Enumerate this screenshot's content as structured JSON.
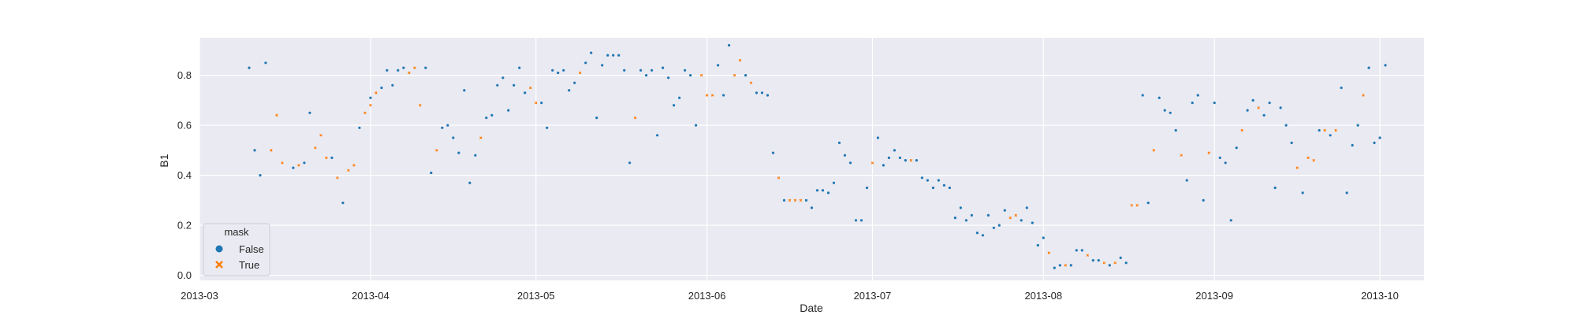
{
  "chart_data": {
    "type": "scatter",
    "xlabel": "Date",
    "ylabel": "B1",
    "x_range": [
      "2013-03-01",
      "2013-10-09"
    ],
    "ylim": [
      -0.02,
      0.95
    ],
    "x_ticks": [
      "2013-03-01",
      "2013-04-01",
      "2013-05-01",
      "2013-06-01",
      "2013-07-01",
      "2013-08-01",
      "2013-09-01",
      "2013-10-01"
    ],
    "x_tick_labels": [
      "2013-03",
      "2013-04",
      "2013-05",
      "2013-06",
      "2013-07",
      "2013-08",
      "2013-09",
      "2013-10"
    ],
    "y_ticks": [
      0.0,
      0.2,
      0.4,
      0.6,
      0.8
    ],
    "y_tick_labels": [
      "0.0",
      "0.2",
      "0.4",
      "0.6",
      "0.8"
    ],
    "grid": true,
    "legend": {
      "title": "mask",
      "placement": "lower-left",
      "entries": [
        {
          "label": "False",
          "marker": "circle",
          "color": "#1f77b4"
        },
        {
          "label": "True",
          "marker": "x",
          "color": "#ff7f0e"
        }
      ]
    },
    "colors": {
      "background": "#eaeaf2",
      "grid": "#ffffff",
      "False": "#1f77b4",
      "True": "#ff7f0e"
    },
    "series": [
      {
        "name": "False",
        "points": [
          [
            "2013-03-10",
            0.83
          ],
          [
            "2013-03-11",
            0.5
          ],
          [
            "2013-03-12",
            0.4
          ],
          [
            "2013-03-13",
            0.85
          ],
          [
            "2013-03-18",
            0.43
          ],
          [
            "2013-03-20",
            0.45
          ],
          [
            "2013-03-21",
            0.65
          ],
          [
            "2013-03-25",
            0.47
          ],
          [
            "2013-03-27",
            0.29
          ],
          [
            "2013-03-30",
            0.59
          ],
          [
            "2013-04-01",
            0.71
          ],
          [
            "2013-04-03",
            0.75
          ],
          [
            "2013-04-04",
            0.82
          ],
          [
            "2013-04-05",
            0.76
          ],
          [
            "2013-04-06",
            0.82
          ],
          [
            "2013-04-07",
            0.83
          ],
          [
            "2013-04-11",
            0.83
          ],
          [
            "2013-04-12",
            0.41
          ],
          [
            "2013-04-14",
            0.59
          ],
          [
            "2013-04-15",
            0.6
          ],
          [
            "2013-04-16",
            0.55
          ],
          [
            "2013-04-17",
            0.49
          ],
          [
            "2013-04-18",
            0.74
          ],
          [
            "2013-04-19",
            0.37
          ],
          [
            "2013-04-20",
            0.48
          ],
          [
            "2013-04-22",
            0.63
          ],
          [
            "2013-04-23",
            0.64
          ],
          [
            "2013-04-24",
            0.76
          ],
          [
            "2013-04-25",
            0.79
          ],
          [
            "2013-04-26",
            0.66
          ],
          [
            "2013-04-27",
            0.76
          ],
          [
            "2013-04-28",
            0.83
          ],
          [
            "2013-04-29",
            0.73
          ],
          [
            "2013-05-02",
            0.69
          ],
          [
            "2013-05-03",
            0.59
          ],
          [
            "2013-05-04",
            0.82
          ],
          [
            "2013-05-05",
            0.81
          ],
          [
            "2013-05-06",
            0.82
          ],
          [
            "2013-05-07",
            0.74
          ],
          [
            "2013-05-08",
            0.77
          ],
          [
            "2013-05-10",
            0.85
          ],
          [
            "2013-05-11",
            0.89
          ],
          [
            "2013-05-12",
            0.63
          ],
          [
            "2013-05-13",
            0.84
          ],
          [
            "2013-05-14",
            0.88
          ],
          [
            "2013-05-15",
            0.88
          ],
          [
            "2013-05-16",
            0.88
          ],
          [
            "2013-05-17",
            0.82
          ],
          [
            "2013-05-18",
            0.45
          ],
          [
            "2013-05-20",
            0.82
          ],
          [
            "2013-05-21",
            0.8
          ],
          [
            "2013-05-22",
            0.82
          ],
          [
            "2013-05-23",
            0.56
          ],
          [
            "2013-05-24",
            0.83
          ],
          [
            "2013-05-25",
            0.79
          ],
          [
            "2013-05-26",
            0.68
          ],
          [
            "2013-05-27",
            0.71
          ],
          [
            "2013-05-28",
            0.82
          ],
          [
            "2013-05-29",
            0.8
          ],
          [
            "2013-05-30",
            0.6
          ],
          [
            "2013-06-03",
            0.84
          ],
          [
            "2013-06-04",
            0.72
          ],
          [
            "2013-06-05",
            0.92
          ],
          [
            "2013-06-08",
            0.8
          ],
          [
            "2013-06-10",
            0.73
          ],
          [
            "2013-06-11",
            0.73
          ],
          [
            "2013-06-12",
            0.72
          ],
          [
            "2013-06-13",
            0.49
          ],
          [
            "2013-06-15",
            0.3
          ],
          [
            "2013-06-19",
            0.3
          ],
          [
            "2013-06-20",
            0.27
          ],
          [
            "2013-06-21",
            0.34
          ],
          [
            "2013-06-22",
            0.34
          ],
          [
            "2013-06-23",
            0.33
          ],
          [
            "2013-06-24",
            0.37
          ],
          [
            "2013-06-25",
            0.53
          ],
          [
            "2013-06-26",
            0.48
          ],
          [
            "2013-06-27",
            0.45
          ],
          [
            "2013-06-28",
            0.22
          ],
          [
            "2013-06-29",
            0.22
          ],
          [
            "2013-06-30",
            0.35
          ],
          [
            "2013-07-02",
            0.55
          ],
          [
            "2013-07-03",
            0.44
          ],
          [
            "2013-07-04",
            0.47
          ],
          [
            "2013-07-05",
            0.5
          ],
          [
            "2013-07-06",
            0.47
          ],
          [
            "2013-07-07",
            0.46
          ],
          [
            "2013-07-09",
            0.46
          ],
          [
            "2013-07-10",
            0.39
          ],
          [
            "2013-07-11",
            0.38
          ],
          [
            "2013-07-12",
            0.35
          ],
          [
            "2013-07-13",
            0.38
          ],
          [
            "2013-07-14",
            0.36
          ],
          [
            "2013-07-15",
            0.35
          ],
          [
            "2013-07-16",
            0.23
          ],
          [
            "2013-07-17",
            0.27
          ],
          [
            "2013-07-18",
            0.22
          ],
          [
            "2013-07-19",
            0.24
          ],
          [
            "2013-07-20",
            0.17
          ],
          [
            "2013-07-21",
            0.16
          ],
          [
            "2013-07-22",
            0.24
          ],
          [
            "2013-07-23",
            0.19
          ],
          [
            "2013-07-24",
            0.2
          ],
          [
            "2013-07-25",
            0.26
          ],
          [
            "2013-07-28",
            0.22
          ],
          [
            "2013-07-29",
            0.27
          ],
          [
            "2013-07-30",
            0.21
          ],
          [
            "2013-07-31",
            0.12
          ],
          [
            "2013-08-01",
            0.15
          ],
          [
            "2013-08-03",
            0.03
          ],
          [
            "2013-08-04",
            0.04
          ],
          [
            "2013-08-06",
            0.04
          ],
          [
            "2013-08-07",
            0.1
          ],
          [
            "2013-08-08",
            0.1
          ],
          [
            "2013-08-10",
            0.06
          ],
          [
            "2013-08-11",
            0.06
          ],
          [
            "2013-08-13",
            0.04
          ],
          [
            "2013-08-15",
            0.07
          ],
          [
            "2013-08-16",
            0.05
          ],
          [
            "2013-08-19",
            0.72
          ],
          [
            "2013-08-20",
            0.29
          ],
          [
            "2013-08-22",
            0.71
          ],
          [
            "2013-08-23",
            0.66
          ],
          [
            "2013-08-24",
            0.65
          ],
          [
            "2013-08-25",
            0.58
          ],
          [
            "2013-08-27",
            0.38
          ],
          [
            "2013-08-28",
            0.69
          ],
          [
            "2013-08-29",
            0.72
          ],
          [
            "2013-08-30",
            0.3
          ],
          [
            "2013-09-01",
            0.69
          ],
          [
            "2013-09-02",
            0.47
          ],
          [
            "2013-09-03",
            0.45
          ],
          [
            "2013-09-04",
            0.22
          ],
          [
            "2013-09-05",
            0.51
          ],
          [
            "2013-09-07",
            0.66
          ],
          [
            "2013-09-08",
            0.7
          ],
          [
            "2013-09-10",
            0.64
          ],
          [
            "2013-09-11",
            0.69
          ],
          [
            "2013-09-12",
            0.35
          ],
          [
            "2013-09-13",
            0.67
          ],
          [
            "2013-09-14",
            0.6
          ],
          [
            "2013-09-15",
            0.53
          ],
          [
            "2013-09-17",
            0.33
          ],
          [
            "2013-09-20",
            0.58
          ],
          [
            "2013-09-22",
            0.56
          ],
          [
            "2013-09-24",
            0.75
          ],
          [
            "2013-09-25",
            0.33
          ],
          [
            "2013-09-26",
            0.52
          ],
          [
            "2013-09-27",
            0.6
          ],
          [
            "2013-09-29",
            0.83
          ],
          [
            "2013-09-30",
            0.53
          ],
          [
            "2013-10-01",
            0.55
          ],
          [
            "2013-10-02",
            0.84
          ]
        ]
      },
      {
        "name": "True",
        "points": [
          [
            "2013-03-14",
            0.5
          ],
          [
            "2013-03-15",
            0.64
          ],
          [
            "2013-03-16",
            0.45
          ],
          [
            "2013-03-19",
            0.44
          ],
          [
            "2013-03-22",
            0.51
          ],
          [
            "2013-03-23",
            0.56
          ],
          [
            "2013-03-24",
            0.47
          ],
          [
            "2013-03-26",
            0.39
          ],
          [
            "2013-03-28",
            0.42
          ],
          [
            "2013-03-29",
            0.44
          ],
          [
            "2013-03-31",
            0.65
          ],
          [
            "2013-04-01",
            0.68
          ],
          [
            "2013-04-02",
            0.73
          ],
          [
            "2013-04-08",
            0.81
          ],
          [
            "2013-04-09",
            0.83
          ],
          [
            "2013-04-10",
            0.68
          ],
          [
            "2013-04-13",
            0.5
          ],
          [
            "2013-04-21",
            0.55
          ],
          [
            "2013-04-30",
            0.75
          ],
          [
            "2013-05-01",
            0.69
          ],
          [
            "2013-05-09",
            0.81
          ],
          [
            "2013-05-19",
            0.63
          ],
          [
            "2013-05-31",
            0.8
          ],
          [
            "2013-06-01",
            0.72
          ],
          [
            "2013-06-02",
            0.72
          ],
          [
            "2013-06-06",
            0.8
          ],
          [
            "2013-06-07",
            0.86
          ],
          [
            "2013-06-09",
            0.77
          ],
          [
            "2013-06-14",
            0.39
          ],
          [
            "2013-06-16",
            0.3
          ],
          [
            "2013-06-17",
            0.3
          ],
          [
            "2013-06-18",
            0.3
          ],
          [
            "2013-07-01",
            0.45
          ],
          [
            "2013-07-08",
            0.46
          ],
          [
            "2013-07-26",
            0.23
          ],
          [
            "2013-07-27",
            0.24
          ],
          [
            "2013-08-02",
            0.09
          ],
          [
            "2013-08-05",
            0.04
          ],
          [
            "2013-08-09",
            0.08
          ],
          [
            "2013-08-12",
            0.05
          ],
          [
            "2013-08-14",
            0.05
          ],
          [
            "2013-08-17",
            0.28
          ],
          [
            "2013-08-18",
            0.28
          ],
          [
            "2013-08-21",
            0.5
          ],
          [
            "2013-08-26",
            0.48
          ],
          [
            "2013-08-31",
            0.49
          ],
          [
            "2013-09-06",
            0.58
          ],
          [
            "2013-09-09",
            0.67
          ],
          [
            "2013-09-16",
            0.43
          ],
          [
            "2013-09-18",
            0.47
          ],
          [
            "2013-09-19",
            0.46
          ],
          [
            "2013-09-21",
            0.58
          ],
          [
            "2013-09-23",
            0.58
          ],
          [
            "2013-09-28",
            0.72
          ]
        ]
      }
    ]
  }
}
